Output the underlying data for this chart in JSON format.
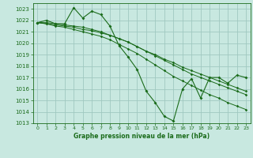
{
  "title": "Graphe pression niveau de la mer (hPa)",
  "bg_color": "#c8e8e0",
  "grid_color": "#a0c8c0",
  "line_color": "#1a6b1a",
  "xlim": [
    -0.5,
    23.5
  ],
  "ylim": [
    1013,
    1023.5
  ],
  "yticks": [
    1013,
    1014,
    1015,
    1016,
    1017,
    1018,
    1019,
    1020,
    1021,
    1022,
    1023
  ],
  "xticks": [
    0,
    1,
    2,
    3,
    4,
    5,
    6,
    7,
    8,
    9,
    10,
    11,
    12,
    13,
    14,
    15,
    16,
    17,
    18,
    19,
    20,
    21,
    22,
    23
  ],
  "series": [
    [
      1021.8,
      1022.0,
      1021.7,
      1021.7,
      1023.1,
      1022.2,
      1022.8,
      1022.5,
      1021.5,
      1019.8,
      1018.8,
      1017.7,
      1015.8,
      1014.8,
      1013.6,
      1013.2,
      1016.0,
      1016.9,
      1015.2,
      1017.0,
      1017.0,
      1016.5,
      1017.2,
      1017.0
    ],
    [
      1021.8,
      1021.8,
      1021.7,
      1021.6,
      1021.5,
      1021.4,
      1021.2,
      1021.0,
      1020.7,
      1020.4,
      1020.1,
      1019.7,
      1019.3,
      1019.0,
      1018.6,
      1018.3,
      1017.9,
      1017.6,
      1017.3,
      1017.0,
      1016.7,
      1016.4,
      1016.1,
      1015.8
    ],
    [
      1021.8,
      1021.7,
      1021.6,
      1021.5,
      1021.4,
      1021.2,
      1021.1,
      1020.9,
      1020.7,
      1020.4,
      1020.1,
      1019.7,
      1019.3,
      1018.9,
      1018.5,
      1018.1,
      1017.7,
      1017.3,
      1017.0,
      1016.7,
      1016.4,
      1016.1,
      1015.8,
      1015.5
    ],
    [
      1021.8,
      1021.7,
      1021.5,
      1021.4,
      1021.2,
      1021.0,
      1020.8,
      1020.6,
      1020.3,
      1019.9,
      1019.5,
      1019.1,
      1018.6,
      1018.1,
      1017.6,
      1017.1,
      1016.7,
      1016.3,
      1015.9,
      1015.5,
      1015.2,
      1014.8,
      1014.5,
      1014.2
    ]
  ]
}
